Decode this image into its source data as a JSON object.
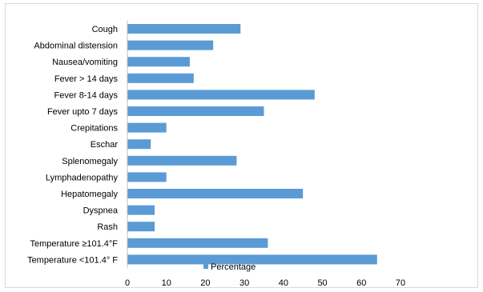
{
  "chart_data": {
    "type": "bar",
    "orientation": "horizontal",
    "categories": [
      "Cough",
      "Abdominal distension",
      "Nausea/vomiting",
      "Fever > 14 days",
      "Fever 8-14 days",
      "Fever upto 7 days",
      "Crepitations",
      "Eschar",
      "Splenomegaly",
      "Lymphadenopathy",
      "Hepatomegaly",
      "Dyspnea",
      "Rash",
      "Temperature  ≥101.4°F",
      "Temperature <101.4° F"
    ],
    "series": [
      {
        "name": "Percentage",
        "values": [
          29,
          22,
          16,
          17,
          48,
          35,
          10,
          6,
          28,
          10,
          45,
          7,
          7,
          36,
          64
        ],
        "color": "#5b9bd5"
      }
    ],
    "xticks": [
      "0",
      "10",
      "20",
      "30",
      "40",
      "50",
      "60",
      "70"
    ],
    "xlim": [
      0,
      70
    ],
    "grid": false,
    "legend_position": "bottom-overlapping-last-bar"
  }
}
